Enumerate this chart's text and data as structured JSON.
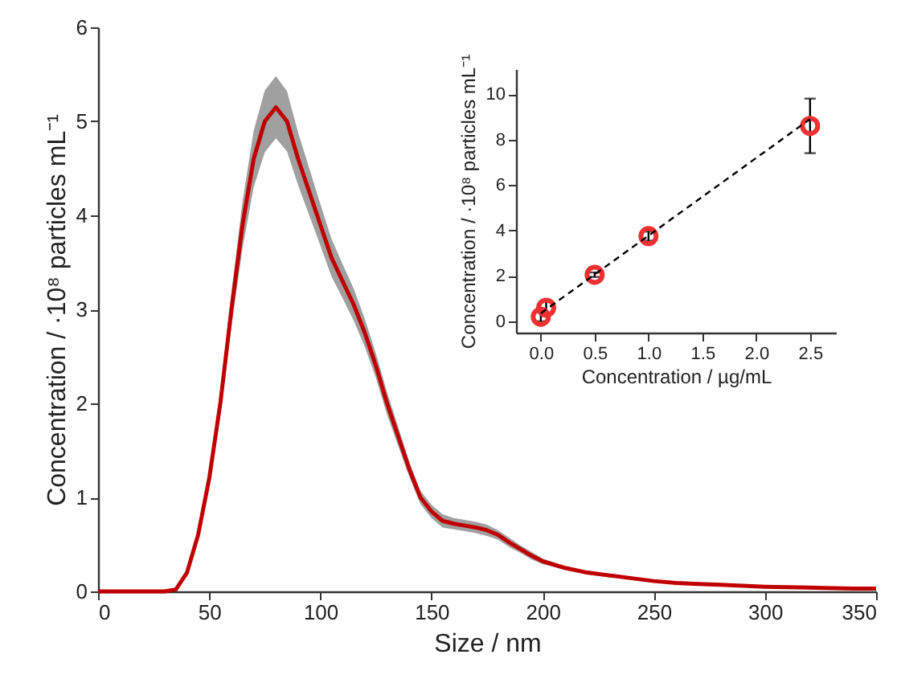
{
  "chart_data": [
    {
      "type": "line",
      "xlabel": "Size / nm",
      "ylabel": "Concentration / ·10⁸ particles mL⁻¹",
      "xlim": [
        0,
        350
      ],
      "ylim": [
        0,
        6
      ],
      "xticks": [
        0,
        50,
        100,
        150,
        200,
        250,
        300,
        350
      ],
      "yticks": [
        0,
        1,
        2,
        3,
        4,
        5,
        6
      ],
      "grid": false,
      "x": [
        0,
        10,
        20,
        30,
        35,
        40,
        45,
        50,
        55,
        60,
        65,
        70,
        75,
        80,
        85,
        90,
        95,
        100,
        105,
        110,
        115,
        120,
        125,
        130,
        135,
        140,
        145,
        150,
        155,
        160,
        165,
        170,
        175,
        180,
        185,
        190,
        195,
        200,
        210,
        220,
        230,
        240,
        250,
        260,
        270,
        280,
        290,
        300,
        320,
        340,
        350
      ],
      "series": [
        {
          "color": "#c00000",
          "values": [
            0,
            0,
            0,
            0,
            0.02,
            0.2,
            0.6,
            1.2,
            2.0,
            3.0,
            3.9,
            4.6,
            5.0,
            5.15,
            5.0,
            4.6,
            4.25,
            3.9,
            3.55,
            3.3,
            3.05,
            2.75,
            2.4,
            2.0,
            1.65,
            1.3,
            1.0,
            0.85,
            0.75,
            0.72,
            0.7,
            0.68,
            0.65,
            0.6,
            0.52,
            0.45,
            0.38,
            0.32,
            0.25,
            0.2,
            0.17,
            0.14,
            0.11,
            0.09,
            0.08,
            0.07,
            0.06,
            0.05,
            0.04,
            0.03,
            0.03
          ],
          "lower": [
            0,
            0,
            0,
            0,
            0.01,
            0.17,
            0.55,
            1.12,
            1.88,
            2.82,
            3.65,
            4.3,
            4.67,
            4.82,
            4.68,
            4.32,
            4.0,
            3.68,
            3.35,
            3.12,
            2.88,
            2.6,
            2.27,
            1.88,
            1.55,
            1.22,
            0.93,
            0.78,
            0.68,
            0.66,
            0.64,
            0.62,
            0.59,
            0.55,
            0.47,
            0.41,
            0.34,
            0.29,
            0.23,
            0.18,
            0.15,
            0.13,
            0.1,
            0.08,
            0.07,
            0.06,
            0.05,
            0.04,
            0.03,
            0.02,
            0.02
          ],
          "upper": [
            0,
            0,
            0,
            0,
            0.03,
            0.23,
            0.65,
            1.28,
            2.12,
            3.18,
            4.15,
            4.9,
            5.33,
            5.48,
            5.32,
            4.88,
            4.5,
            4.12,
            3.75,
            3.48,
            3.22,
            2.9,
            2.53,
            2.12,
            1.75,
            1.38,
            1.07,
            0.92,
            0.82,
            0.78,
            0.76,
            0.74,
            0.71,
            0.65,
            0.57,
            0.49,
            0.42,
            0.35,
            0.27,
            0.22,
            0.19,
            0.15,
            0.12,
            0.1,
            0.09,
            0.08,
            0.07,
            0.06,
            0.05,
            0.04,
            0.04
          ]
        }
      ]
    },
    {
      "type": "scatter",
      "xlabel": "Concentration / µg/mL",
      "ylabel": "Concentration / ·10⁸ particles mL⁻¹",
      "xlim": [
        -0.23,
        2.74
      ],
      "ylim": [
        -0.5,
        11.1
      ],
      "xticks": [
        {
          "value": 0,
          "label": "0.0"
        },
        {
          "value": 0.5,
          "label": "0.5"
        },
        {
          "value": 1,
          "label": "1.0"
        },
        {
          "value": 1.5,
          "label": "1.5"
        },
        {
          "value": 2,
          "label": "2.0"
        },
        {
          "value": 2.5,
          "label": "2.5"
        }
      ],
      "yticks": [
        0,
        2,
        4,
        6,
        8,
        10
      ],
      "grid": false,
      "x": [
        0,
        0.05,
        0.5,
        1,
        2.5
      ],
      "series": [
        {
          "type": "scatter",
          "marker": "circle",
          "color": "#ee3030",
          "values": [
            0.2,
            0.6,
            2.05,
            3.75,
            8.6
          ],
          "errors": [
            0.2,
            0.3,
            0.1,
            0.2,
            [
              7.4,
              9.8
            ]
          ]
        },
        {
          "type": "line",
          "color": "#000000",
          "line_style": "dashed",
          "x": [
            0,
            2.5
          ],
          "values": [
            0.35,
            8.9
          ]
        }
      ]
    }
  ]
}
